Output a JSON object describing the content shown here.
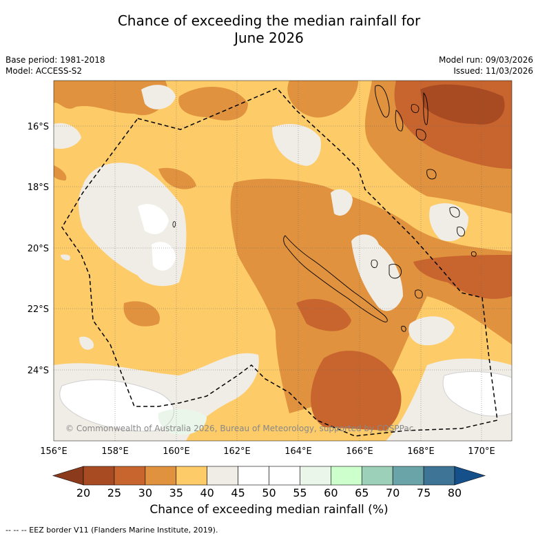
{
  "title": {
    "line1": "Chance of exceeding the median rainfall for",
    "line2": "June 2026"
  },
  "meta": {
    "base_period": "Base period: 1981-2018",
    "model": "Model: ACCESS-S2",
    "model_run": "Model run: 09/03/2026",
    "issued": "Issued: 11/03/2026"
  },
  "map": {
    "lat_labels": [
      "16°S",
      "18°S",
      "20°S",
      "22°S",
      "24°S"
    ],
    "lon_labels": [
      "156°E",
      "158°E",
      "160°E",
      "162°E",
      "164°E",
      "166°E",
      "168°E",
      "170°E"
    ],
    "copyright": "© Commonwealth of Australia 2026, Bureau of Meteorology, supported by COSPPac"
  },
  "colorbar": {
    "ticks": [
      "20",
      "25",
      "30",
      "35",
      "40",
      "45",
      "50",
      "55",
      "60",
      "65",
      "70",
      "75",
      "80"
    ],
    "colors": [
      "#a84a22",
      "#c8652e",
      "#e0923e",
      "#fdcb68",
      "#f0ece6",
      "#ffffff",
      "#ffffff",
      "#eaf6ea",
      "#ccffcc",
      "#9dd0b8",
      "#6ba4a8",
      "#3e7596"
    ],
    "under_color": "#8c3a1c",
    "over_color": "#15508a",
    "label": "Chance of exceeding median rainfall (%)"
  },
  "footnote": "--  --  -- EEZ border V11 (Flanders Marine Institute, 2019)."
}
